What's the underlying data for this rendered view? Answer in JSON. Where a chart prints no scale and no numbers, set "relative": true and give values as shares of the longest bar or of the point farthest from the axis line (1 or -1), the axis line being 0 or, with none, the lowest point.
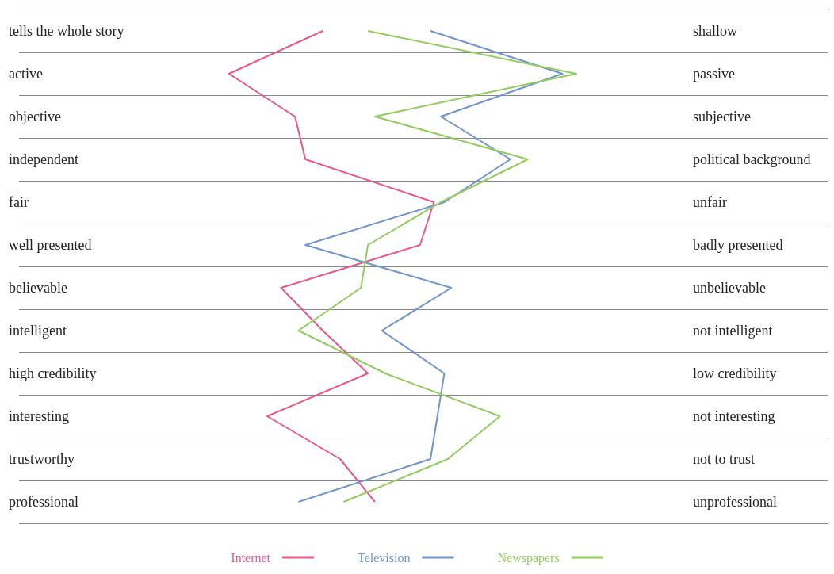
{
  "chart_data": {
    "type": "line",
    "orientation": "horizontal",
    "relative": true,
    "grid": "y",
    "legend": "bottom",
    "marker": "none",
    "line_style": "solid",
    "categories": [
      "tells the whole story",
      "active",
      "objective",
      "independent",
      "fair",
      "well presented",
      "believable",
      "intelligent",
      "high credibility",
      "interesting",
      "trustworthy",
      "professional"
    ],
    "y2_categories": [
      "shallow",
      "passive",
      "subjective",
      "political background",
      "unfair",
      "badly presented",
      "unbelievable",
      "not intelligent",
      "low credibility",
      "not interesting",
      "not to trust",
      "unprofessional"
    ],
    "series": [
      {
        "name": "Internet",
        "color": "#e8588a",
        "values": [
          0.27,
          0,
          0.19,
          0.22,
          0.59,
          0.55,
          0.15,
          0.27,
          0.4,
          0.11,
          0.32,
          0.42
        ]
      },
      {
        "name": "Television",
        "color": "#7094cc",
        "values": [
          0.58,
          0.96,
          0.61,
          0.81,
          0.62,
          0.22,
          0.64,
          0.44,
          0.62,
          0.6,
          0.58,
          0.2
        ]
      },
      {
        "name": "Newspapers",
        "color": "#92cc5e",
        "values": [
          0.4,
          1,
          0.42,
          0.86,
          0.61,
          0.4,
          0.38,
          0.2,
          0.45,
          0.78,
          0.63,
          0.33
        ]
      }
    ]
  }
}
